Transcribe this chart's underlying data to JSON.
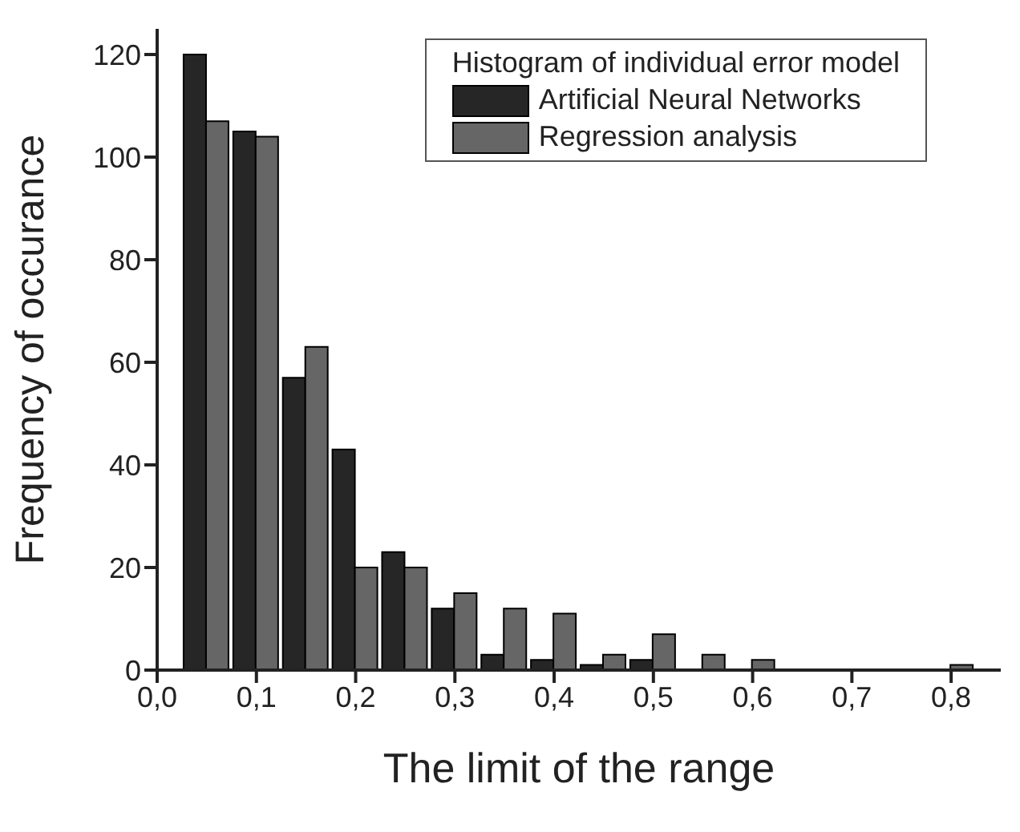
{
  "chart_data": {
    "type": "bar",
    "xlabel": "The limit of the range",
    "ylabel": "Frequency of occurance",
    "legend_title": "Histogram of individual error model",
    "legend": "top right",
    "grid": false,
    "x": [
      0.05,
      0.1,
      0.15,
      0.2,
      0.25,
      0.3,
      0.35,
      0.4,
      0.45,
      0.5,
      0.55,
      0.6,
      0.65,
      0.7,
      0.75,
      0.8
    ],
    "series": [
      {
        "name": "Artificial Neural Networks",
        "color": "#262626",
        "values": [
          120,
          105,
          57,
          43,
          23,
          12,
          3,
          2,
          1,
          2,
          0,
          0,
          0,
          0,
          0,
          0
        ]
      },
      {
        "name": "Regression analysis",
        "color": "#666666",
        "values": [
          107,
          104,
          63,
          20,
          20,
          15,
          12,
          11,
          3,
          7,
          3,
          2,
          0,
          0,
          0,
          1
        ]
      }
    ],
    "xlim": [
      0,
      0.85
    ],
    "xticks": [
      {
        "value": 0,
        "label": "0,0"
      },
      {
        "value": 0.1,
        "label": "0,1"
      },
      {
        "value": 0.2,
        "label": "0,2"
      },
      {
        "value": 0.3,
        "label": "0,3"
      },
      {
        "value": 0.4,
        "label": "0,4"
      },
      {
        "value": 0.5,
        "label": "0,5"
      },
      {
        "value": 0.6,
        "label": "0,6"
      },
      {
        "value": 0.7,
        "label": "0,7"
      },
      {
        "value": 0.8,
        "label": "0,8"
      }
    ],
    "ylim": [
      0,
      125
    ],
    "yticks": [
      0,
      20,
      40,
      60,
      80,
      100,
      120
    ]
  }
}
